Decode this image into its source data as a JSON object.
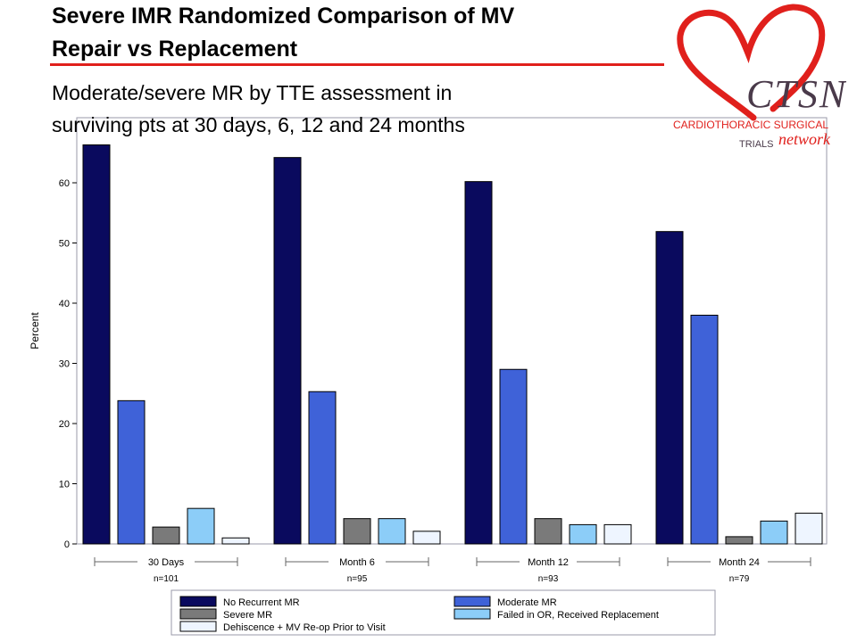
{
  "slide": {
    "title_line1": "Severe IMR Randomized Comparison of MV",
    "title_line2": "Repair vs Replacement",
    "subtitle_line1": "Moderate/severe MR by TTE assessment  in",
    "subtitle_line2": "surviving pts at 30 days, 6, 12 and 24 months",
    "accent_color": "#e0201c"
  },
  "logo": {
    "wordmark": "CTSN",
    "line1": "CARDIOTHORACIC SURGICAL",
    "line2_a": "TRIALS",
    "line2_b": "network",
    "heart_color": "#e0201c",
    "text_color": "#4a3a4a"
  },
  "chart_data": {
    "type": "bar",
    "ylabel": "Percent",
    "ylim": [
      0,
      70
    ],
    "yticks": [
      0,
      10,
      20,
      30,
      40,
      50,
      60
    ],
    "visible_ytick_labels": [
      "0",
      "10",
      "20",
      "30",
      "40",
      "50",
      "60"
    ],
    "grid": false,
    "legend_placement": "bottom",
    "categories": [
      "30 Days",
      "Month 6",
      "Month 12",
      "Month 24"
    ],
    "category_counts": [
      "n=101",
      "n=95",
      "n=93",
      "n=79"
    ],
    "series": [
      {
        "name": "No Recurrent MR",
        "color": "#0a0a5e",
        "values": [
          66.3,
          64.2,
          60.2,
          51.9
        ]
      },
      {
        "name": "Moderate MR",
        "color": "#3f62d8",
        "values": [
          23.8,
          25.3,
          29.0,
          38.0
        ]
      },
      {
        "name": "Severe MR",
        "color": "#7a7a7a",
        "values": [
          2.8,
          4.2,
          4.2,
          1.2
        ]
      },
      {
        "name": "Failed in OR, Received Replacement",
        "color": "#8ccdf8",
        "values": [
          5.9,
          4.2,
          3.2,
          3.8
        ]
      },
      {
        "name": "Dehiscence + MV Re-op Prior to Visit",
        "color": "#eef5ff",
        "values": [
          1.0,
          2.1,
          3.2,
          5.1
        ]
      }
    ]
  }
}
